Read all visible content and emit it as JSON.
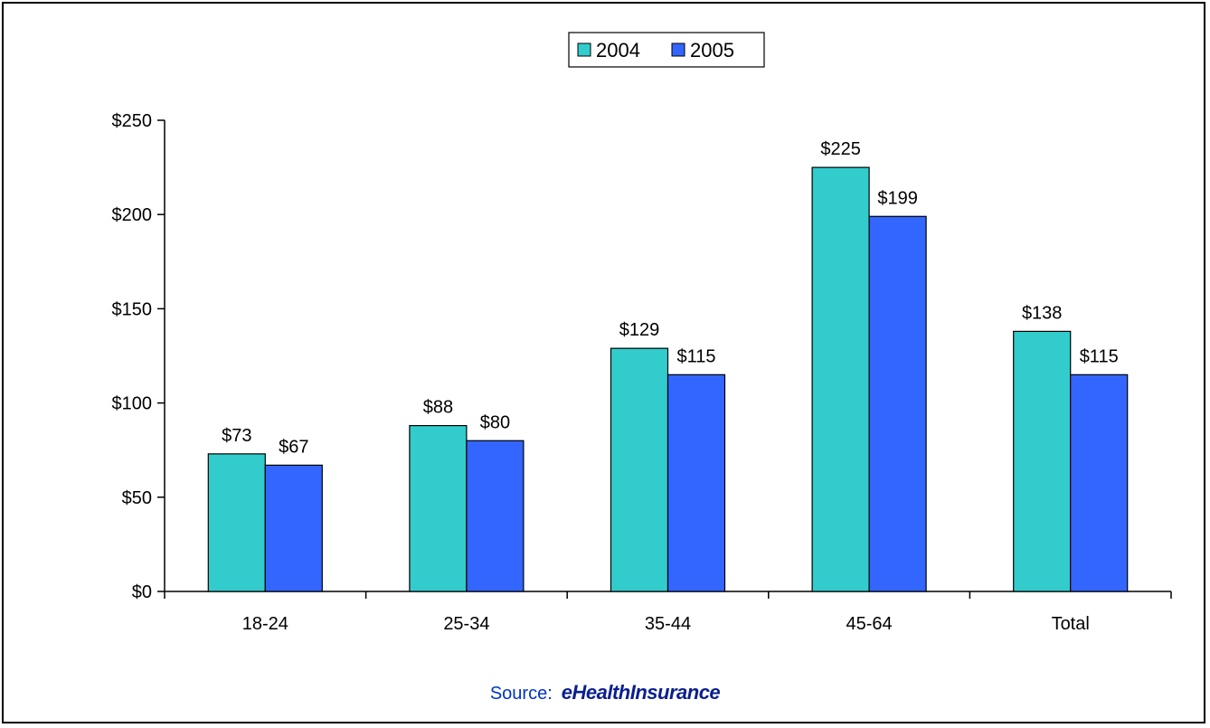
{
  "chart_data": {
    "type": "bar",
    "categories": [
      "18-24",
      "25-34",
      "35-44",
      "45-64",
      "Total"
    ],
    "series": [
      {
        "name": "2004",
        "values": [
          73,
          88,
          129,
          225,
          138
        ],
        "labels": [
          "$73",
          "$88",
          "$129",
          "$225",
          "$138"
        ],
        "color": "#33CCCC"
      },
      {
        "name": "2005",
        "values": [
          67,
          80,
          115,
          199,
          115
        ],
        "labels": [
          "$67",
          "$80",
          "$115",
          "$199",
          "$115"
        ],
        "color": "#3366FF"
      }
    ],
    "ylim": [
      0,
      250
    ],
    "yticks": [
      0,
      50,
      100,
      150,
      200,
      250
    ],
    "ytick_labels": [
      "$0",
      "$50",
      "$100",
      "$150",
      "$200",
      "$250"
    ],
    "legend": "top-center",
    "grid": false
  },
  "source": {
    "label": "Source:",
    "brand": "eHealthInsurance"
  }
}
